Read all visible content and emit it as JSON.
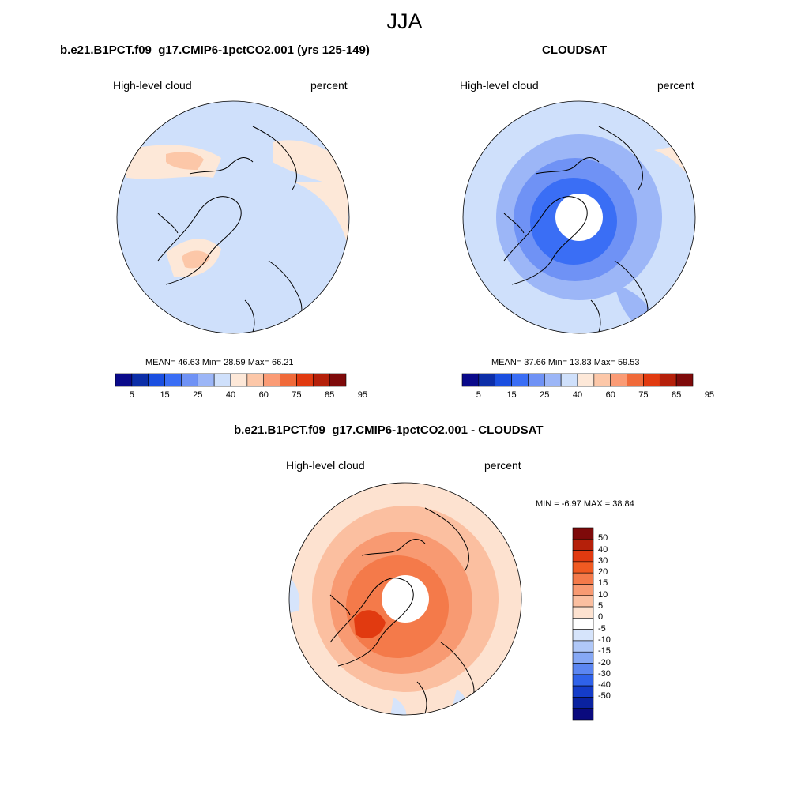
{
  "main_title": "JJA",
  "colors": {
    "abs_scale": [
      "#0a0a8a",
      "#0c2ea8",
      "#1a4fe0",
      "#3a6ef5",
      "#6f92f5",
      "#9cb6f7",
      "#cfe0fb",
      "#fde8d8",
      "#fcc7a8",
      "#fa9b75",
      "#f06a3a",
      "#e13a10",
      "#b5200a",
      "#7e0a0a"
    ],
    "diff_scale": [
      "#7e0a0a",
      "#b5200a",
      "#e13a10",
      "#f05a22",
      "#f47a4a",
      "#f89a72",
      "#fbbfa0",
      "#fde2d0",
      "#ffffff",
      "#d6e4fb",
      "#b0c8f8",
      "#86a8f5",
      "#5b86f2",
      "#2f62ea",
      "#143cc9",
      "#0a22a0",
      "#0a0a7e"
    ]
  },
  "panels": [
    {
      "id": "model",
      "title": "b.e21.B1PCT.f09_g17.CMIP6-1pctCO2.001 (yrs 125-149)",
      "variable": "High-level cloud",
      "units": "percent",
      "stats": {
        "mean_label": "MEAN=",
        "mean": "46.63",
        "min_label": "Min=",
        "min": "28.59",
        "max_label": "Max=",
        "max": "66.21"
      },
      "colorbar_ticks": [
        "5",
        "15",
        "25",
        "40",
        "60",
        "75",
        "85",
        "95"
      ]
    },
    {
      "id": "obs",
      "title": "CLOUDSAT",
      "variable": "High-level cloud",
      "units": "percent",
      "stats": {
        "mean_label": "MEAN=",
        "mean": "37.66",
        "min_label": "Min=",
        "min": "13.83",
        "max_label": "Max=",
        "max": "59.53"
      },
      "colorbar_ticks": [
        "5",
        "15",
        "25",
        "40",
        "60",
        "75",
        "85",
        "95"
      ]
    },
    {
      "id": "diff",
      "title": "b.e21.B1PCT.f09_g17.CMIP6-1pctCO2.001 - CLOUDSAT",
      "variable": "High-level cloud",
      "units": "percent",
      "stats_text": "MIN =  -6.97 MAX =  38.84",
      "colorbar_ticks": [
        "50",
        "40",
        "30",
        "20",
        "15",
        "10",
        "5",
        "0",
        "-5",
        "-10",
        "-15",
        "-20",
        "-30",
        "-40",
        "-50"
      ]
    }
  ]
}
